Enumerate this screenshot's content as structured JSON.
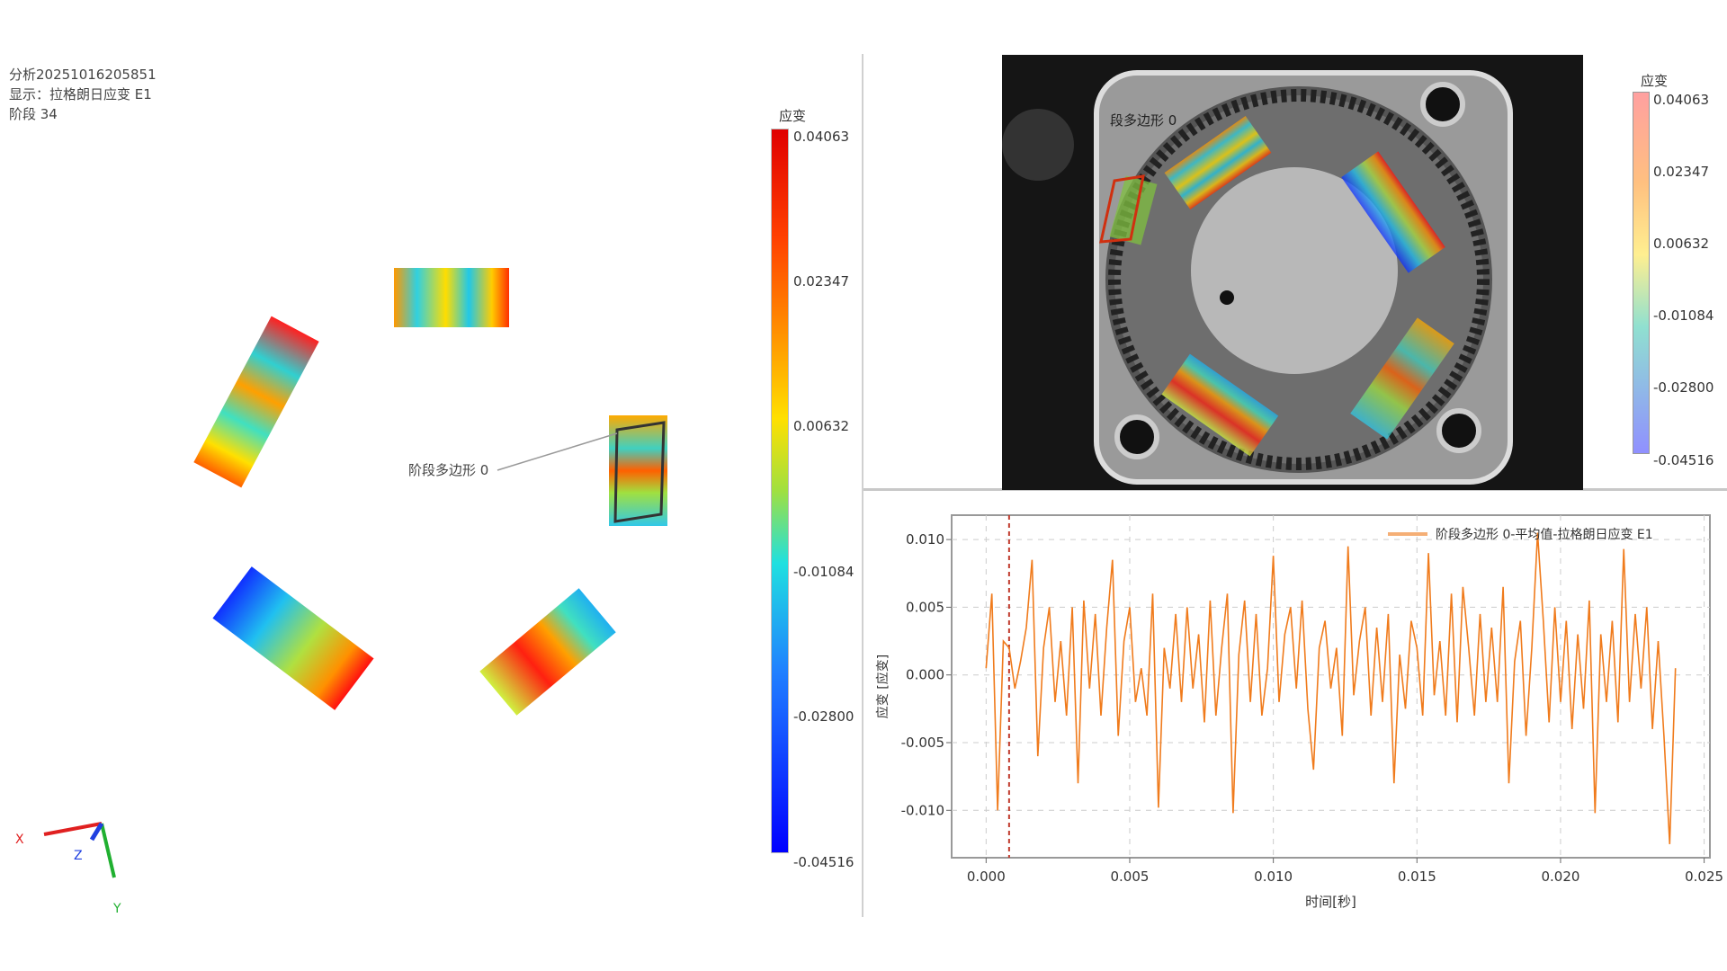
{
  "info": {
    "analysis": "分析20251016205851",
    "display": "显示：拉格朗日应变 E1",
    "stage": "阶段 34"
  },
  "view3d": {
    "polygon_label": "阶段多边形 0",
    "axes": {
      "x": "X",
      "y": "Y",
      "z": "Z"
    },
    "axis_colors": {
      "x": "#e02020",
      "y": "#20b030",
      "z": "#2040e0"
    }
  },
  "colorbar_left": {
    "title": "应变",
    "ticks": [
      "0.04063",
      "0.02347",
      "0.00632",
      "-0.01084",
      "-0.02800",
      "-0.04516"
    ]
  },
  "camera": {
    "polygon_label": "段多边形 0",
    "colorbar": {
      "title": "应变",
      "ticks": [
        "0.04063",
        "0.02347",
        "0.00632",
        "-0.01084",
        "-0.02800",
        "-0.04516"
      ]
    }
  },
  "chart_data": {
    "type": "line",
    "title": "",
    "xlabel": "时间[秒]",
    "ylabel": "应变 [应变]",
    "xlim": [
      -0.0012,
      0.0252
    ],
    "ylim": [
      -0.0135,
      0.0118
    ],
    "xticks": [
      "0.000",
      "0.005",
      "0.010",
      "0.015",
      "0.020",
      "0.025"
    ],
    "yticks": [
      "0.010",
      "0.005",
      "0.000",
      "-0.005",
      "-0.010"
    ],
    "grid": true,
    "legend_position": "top-right",
    "marker_line_x": 0.0008,
    "marker_color": "#c0392b",
    "series": [
      {
        "name": "阶段多边形 0-平均值-拉格朗日应变 E1",
        "color": "#f07b1c",
        "x_step": 0.0002,
        "x_start": 0.0,
        "values": [
          0.0005,
          0.006,
          -0.01,
          0.0025,
          0.002,
          -0.001,
          0.001,
          0.0035,
          0.0085,
          -0.006,
          0.002,
          0.005,
          -0.002,
          0.0025,
          -0.003,
          0.005,
          -0.008,
          0.0055,
          -0.001,
          0.0045,
          -0.003,
          0.0035,
          0.0085,
          -0.0045,
          0.0025,
          0.005,
          -0.002,
          0.0005,
          -0.003,
          0.006,
          -0.0098,
          0.002,
          -0.001,
          0.0045,
          -0.002,
          0.005,
          -0.001,
          0.003,
          -0.0035,
          0.0055,
          -0.003,
          0.002,
          0.006,
          -0.0102,
          0.0015,
          0.0055,
          -0.002,
          0.0045,
          -0.003,
          0.0005,
          0.0088,
          -0.002,
          0.003,
          0.005,
          -0.001,
          0.0055,
          -0.0025,
          -0.007,
          0.002,
          0.004,
          -0.001,
          0.002,
          -0.0045,
          0.0095,
          -0.0015,
          0.0025,
          0.005,
          -0.003,
          0.0035,
          -0.002,
          0.0045,
          -0.008,
          0.0015,
          -0.0025,
          0.004,
          0.002,
          -0.003,
          0.009,
          -0.0015,
          0.0025,
          -0.003,
          0.006,
          -0.0035,
          0.0065,
          0.002,
          -0.003,
          0.0045,
          -0.002,
          0.0035,
          -0.002,
          0.0065,
          -0.008,
          0.001,
          0.004,
          -0.0045,
          0.002,
          0.0105,
          0.004,
          -0.0035,
          0.005,
          -0.002,
          0.004,
          -0.004,
          0.003,
          -0.0025,
          0.0055,
          -0.0102,
          0.003,
          -0.002,
          0.004,
          -0.0035,
          0.0093,
          -0.002,
          0.0045,
          -0.001,
          0.005,
          -0.004,
          0.0025,
          -0.0045,
          -0.0125,
          0.0005
        ]
      }
    ]
  }
}
